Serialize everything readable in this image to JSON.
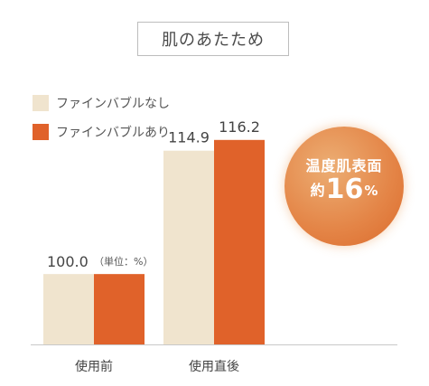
{
  "chart_data": {
    "type": "bar",
    "title": "肌のあたため",
    "categories": [
      "使用前",
      "使用直後"
    ],
    "series": [
      {
        "name": "ファインバブルなし",
        "values": [
          100.0,
          114.9
        ],
        "color": "#f0e4ce"
      },
      {
        "name": "ファインバブルあり",
        "values": [
          100.0,
          116.2
        ],
        "color": "#e0622a"
      }
    ],
    "data_labels": [
      "100.0",
      "114.9",
      "116.2"
    ],
    "unit_note": "（単位：%）",
    "ylim": [
      91.5,
      120
    ],
    "grid": false,
    "legend": "top-left"
  },
  "callout": {
    "line1": "温度肌表面",
    "prefix": "約",
    "value": "16",
    "suffix": "%",
    "color": "#e27a3a"
  }
}
